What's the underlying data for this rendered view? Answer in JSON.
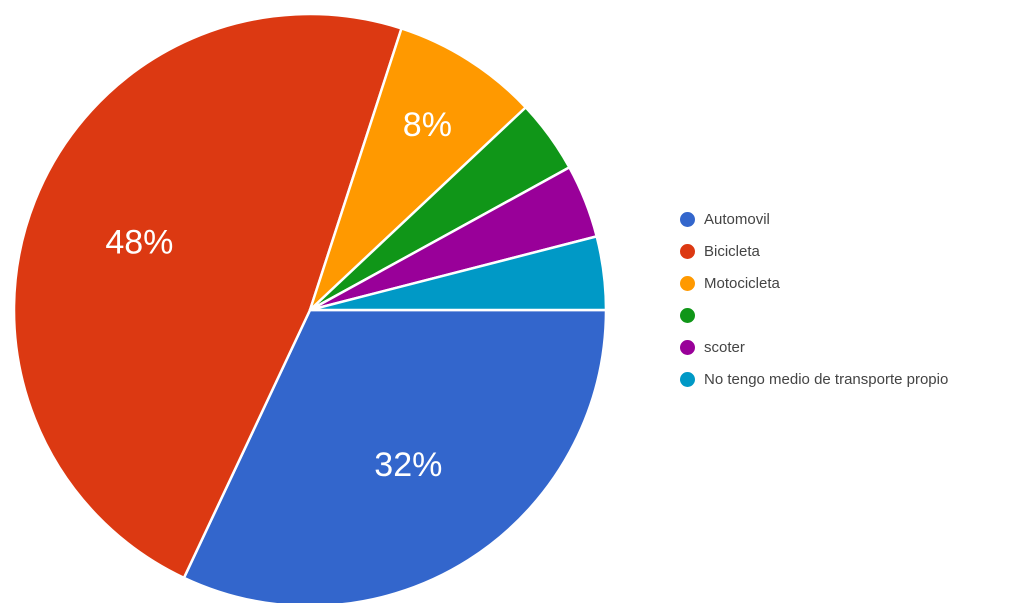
{
  "chart_data": {
    "type": "pie",
    "title": "",
    "legend_position": "right",
    "slices": [
      {
        "label": "Automovil",
        "value": 32,
        "display_label": "32%",
        "color": "#3366cc"
      },
      {
        "label": "Bicicleta",
        "value": 48,
        "display_label": "48%",
        "color": "#dc3912"
      },
      {
        "label": "Motocicleta",
        "value": 8,
        "display_label": "8%",
        "color": "#ff9900"
      },
      {
        "label": "",
        "value": 4,
        "display_label": "",
        "color": "#109618"
      },
      {
        "label": "scoter",
        "value": 4,
        "display_label": "",
        "color": "#990099"
      },
      {
        "label": "No tengo medio de transporte propio",
        "value": 4,
        "display_label": "",
        "color": "#0099c6"
      }
    ]
  }
}
